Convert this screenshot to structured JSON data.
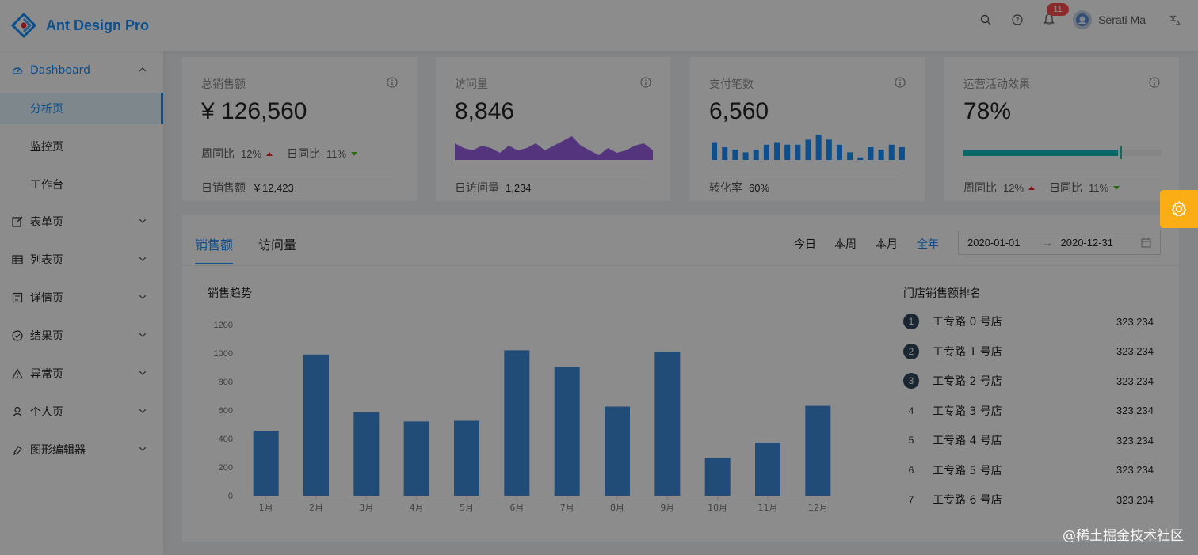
{
  "header": {
    "app_title": "Ant Design Pro",
    "notification_count": "11",
    "user_name": "Serati Ma"
  },
  "sidebar": {
    "dashboard": {
      "label": "Dashboard",
      "children": [
        "分析页",
        "监控页",
        "工作台"
      ],
      "selected": "分析页"
    },
    "items": [
      {
        "label": "表单页",
        "icon": "form-icon"
      },
      {
        "label": "列表页",
        "icon": "table-icon"
      },
      {
        "label": "详情页",
        "icon": "profile-icon"
      },
      {
        "label": "结果页",
        "icon": "check-circle-icon"
      },
      {
        "label": "异常页",
        "icon": "warning-icon"
      },
      {
        "label": "个人页",
        "icon": "user-icon"
      },
      {
        "label": "图形编辑器",
        "icon": "highlight-icon"
      }
    ]
  },
  "stats": {
    "sales": {
      "label": "总销售额",
      "value": "¥ 126,560",
      "week_label": "周同比",
      "week_value": "12%",
      "day_label": "日同比",
      "day_value": "11%",
      "footer_label": "日销售额",
      "footer_value": "￥12,423"
    },
    "visits": {
      "label": "访问量",
      "value": "8,846",
      "footer_label": "日访问量",
      "footer_value": "1,234",
      "area_values": [
        7,
        5,
        4,
        6,
        5,
        3,
        6,
        4,
        5,
        7,
        4,
        6,
        8,
        10,
        6,
        4,
        2,
        5,
        3,
        4,
        6,
        7,
        4
      ]
    },
    "payments": {
      "label": "支付笔数",
      "value": "6,560",
      "footer_label": "转化率",
      "footer_value": "60%",
      "bar_values": [
        7,
        5,
        4,
        3,
        4,
        6,
        7,
        6,
        6,
        8,
        10,
        8,
        6,
        3,
        1,
        5,
        4,
        6,
        5
      ]
    },
    "operations": {
      "label": "运营活动效果",
      "value": "78%",
      "progress": 0.78,
      "progress_color": "#13c2c2",
      "week_label": "周同比",
      "week_value": "12%",
      "day_label": "日同比",
      "day_value": "11%"
    }
  },
  "sales_card": {
    "tabs": [
      "销售额",
      "访问量"
    ],
    "active_tab": "销售额",
    "ranges": [
      "今日",
      "本周",
      "本月",
      "全年"
    ],
    "active_range": "全年",
    "date_start": "2020-01-01",
    "date_separator": "→",
    "date_end": "2020-12-31",
    "chart_title": "销售趋势",
    "rank_title": "门店销售额排名",
    "rank": [
      {
        "no": "1",
        "name": "工专路 0 号店",
        "value": "323,234"
      },
      {
        "no": "2",
        "name": "工专路 1 号店",
        "value": "323,234"
      },
      {
        "no": "3",
        "name": "工专路 2 号店",
        "value": "323,234"
      },
      {
        "no": "4",
        "name": "工专路 3 号店",
        "value": "323,234"
      },
      {
        "no": "5",
        "name": "工专路 4 号店",
        "value": "323,234"
      },
      {
        "no": "6",
        "name": "工专路 5 号店",
        "value": "323,234"
      },
      {
        "no": "7",
        "name": "工专路 6 号店",
        "value": "323,234"
      }
    ]
  },
  "chart_data": {
    "type": "bar",
    "title": "销售趋势",
    "categories": [
      "1月",
      "2月",
      "3月",
      "4月",
      "5月",
      "6月",
      "7月",
      "8月",
      "9月",
      "10月",
      "11月",
      "12月"
    ],
    "values": [
      450,
      990,
      585,
      520,
      525,
      1020,
      900,
      625,
      1010,
      265,
      370,
      630
    ],
    "ylim": [
      0,
      1200
    ],
    "yticks": [
      0,
      200,
      400,
      600,
      800,
      1000,
      1200
    ],
    "color": "#3b8ad9",
    "grid": false
  },
  "watermark": "@稀土掘金技术社区",
  "colors": {
    "primary": "#1890ff",
    "settings": "#faad14",
    "area": "#975fe4"
  }
}
